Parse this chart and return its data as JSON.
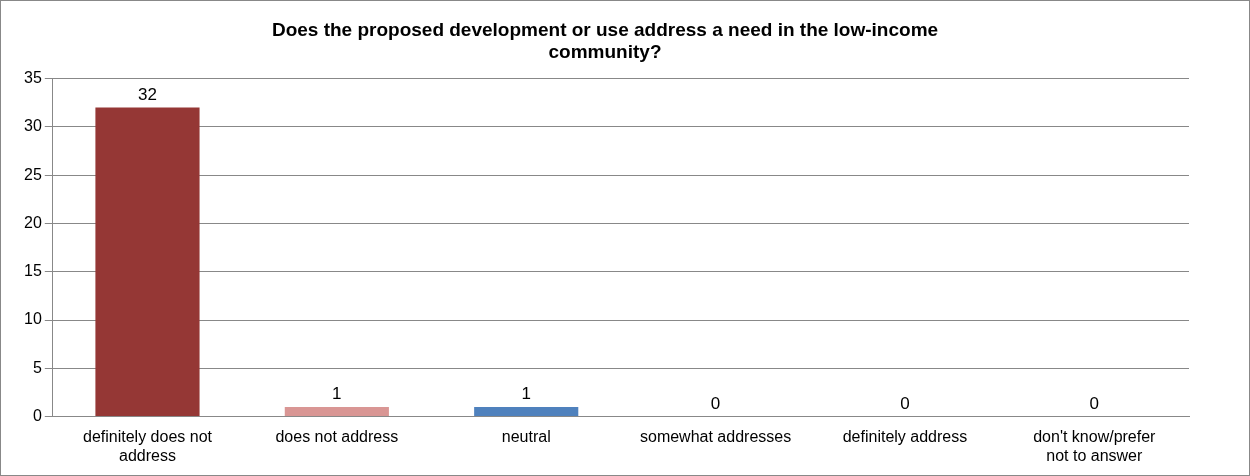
{
  "chart_data": {
    "type": "bar",
    "title": "Does the proposed development or use address a need in the low-income community?",
    "categories": [
      "definitely does not address",
      "does not address",
      "neutral",
      "somewhat addresses",
      "definitely address",
      "don't know/prefer not to answer"
    ],
    "values": [
      32,
      1,
      1,
      0,
      0,
      0
    ],
    "colors": [
      "#953735",
      "#d99694",
      "#4f81bd",
      "#4f81bd",
      "#4f81bd",
      "#4f81bd"
    ],
    "ylim": [
      0,
      35
    ],
    "yticks": [
      0,
      5,
      10,
      15,
      20,
      25,
      30,
      35
    ],
    "grid": "y",
    "legend": false,
    "data_labels": true
  }
}
